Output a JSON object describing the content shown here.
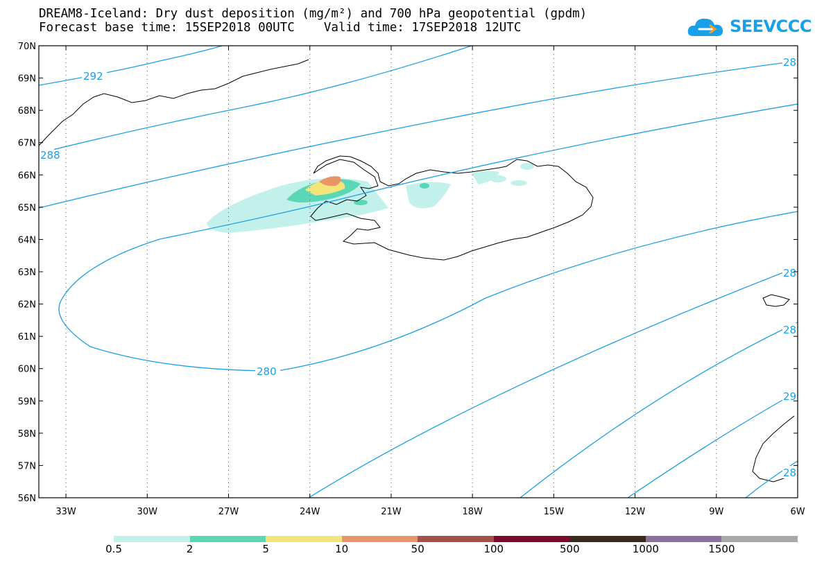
{
  "header": {
    "title_line1": "DREAM8-Iceland: Dry dust deposition (mg/m²) and 700 hPa geopotential (gpdm)",
    "title_line2": "Forecast base time: 15SEP2018 00UTC    Valid time: 17SEP2018 12UTC",
    "logo_text": "SEEVCCC"
  },
  "axes": {
    "lat_labels": [
      "70N",
      "69N",
      "68N",
      "67N",
      "66N",
      "65N",
      "64N",
      "63N",
      "62N",
      "61N",
      "60N",
      "59N",
      "58N",
      "57N",
      "56N"
    ],
    "lon_labels": [
      "33W",
      "30W",
      "27W",
      "24W",
      "21W",
      "18W",
      "15W",
      "12W",
      "9W",
      "6W"
    ],
    "lat_range": [
      56,
      70
    ],
    "lon_range": [
      -34.0,
      -6.0
    ],
    "grid": "dotted"
  },
  "contours": {
    "color": "#1aa0e8",
    "labels": [
      "292",
      "288",
      "280",
      "28",
      "28",
      "28",
      "29",
      "28"
    ]
  },
  "colorbar": {
    "labels": [
      "0.5",
      "2",
      "5",
      "10",
      "50",
      "100",
      "500",
      "1000",
      "1500"
    ],
    "colors": [
      "#c2f0ea",
      "#5ad8b6",
      "#f4e57a",
      "#e8956a",
      "#a6504a",
      "#7c0a2c",
      "#3c2a1a",
      "#8c709c",
      "#a8a8a8"
    ]
  }
}
